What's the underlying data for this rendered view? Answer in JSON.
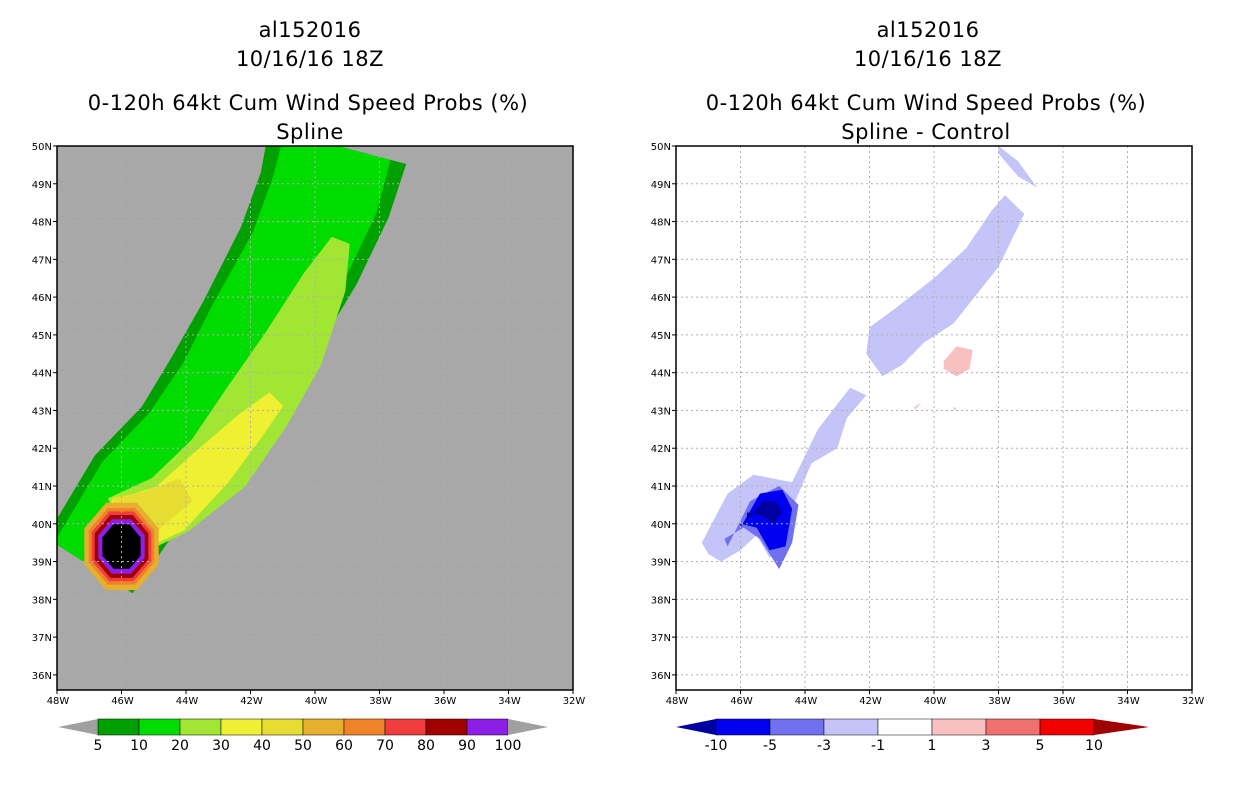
{
  "left_panel": {
    "storm_id": "al152016",
    "datetime": "10/16/16 18Z",
    "product": "0-120h 64kt Cum Wind Speed Probs (%)",
    "subtitle": "Spline"
  },
  "right_panel": {
    "storm_id": "al152016",
    "datetime": "10/16/16 18Z",
    "product": "0-120h 64kt Cum Wind Speed Probs (%)",
    "subtitle": "Spline - Control"
  },
  "colors": {
    "ocean_gray": "#a8a8a8",
    "grid": "#b0b0b0",
    "left_shading": [
      "#00a000",
      "#00dc00",
      "#a0e632",
      "#f0f032",
      "#e6dc32",
      "#e6af2d",
      "#f08228",
      "#f03c3c",
      "#a00000",
      "#8c1ee6"
    ],
    "left_end_arrows": "#a0a0a0",
    "right_shading": [
      "#0000a0",
      "#0000f0",
      "#7070f0",
      "#c4c4f8",
      "#ffffff",
      "#f8c0c0",
      "#f07070",
      "#f00000",
      "#a00000"
    ]
  },
  "chart_data": [
    {
      "type": "heatmap",
      "title": "0-120h 64kt Cum Wind Speed Probs (%)",
      "subtitle": "Spline",
      "x_ticks": [
        "48W",
        "46W",
        "44W",
        "42W",
        "40W",
        "38W",
        "36W",
        "34W",
        "32W"
      ],
      "y_ticks": [
        "36N",
        "37N",
        "38N",
        "39N",
        "40N",
        "41N",
        "42N",
        "43N",
        "44N",
        "45N",
        "46N",
        "47N",
        "48N",
        "49N",
        "50N"
      ],
      "xlim_lon": [
        -48,
        -32
      ],
      "ylim_lat": [
        35.6,
        50
      ],
      "grid": true,
      "colorbar_labels": [
        "5",
        "10",
        "20",
        "30",
        "40",
        "50",
        "60",
        "70",
        "80",
        "90",
        "100"
      ],
      "levels": [
        5,
        10,
        20,
        30,
        40,
        50,
        60,
        70,
        80,
        90,
        100
      ],
      "band_points": [
        {
          "level": 5,
          "lon": [
            -47.0,
            -45.5,
            -44.0,
            -42.8,
            -41.8,
            -40.5,
            -39.7,
            -39.3
          ],
          "lat": [
            38.9,
            40.9,
            42.1,
            43.6,
            45.1,
            47.1,
            48.7,
            50.0
          ],
          "half_width_deg": [
            1.6,
            1.7,
            1.8,
            1.9,
            1.9,
            2.0,
            2.1,
            2.2
          ]
        },
        {
          "level": 10,
          "lon": [
            -47.0,
            -45.5,
            -44.0,
            -42.8,
            -41.8,
            -40.5,
            -39.7,
            -39.3
          ],
          "lat": [
            38.9,
            40.9,
            42.1,
            43.6,
            45.1,
            47.1,
            48.7,
            50.0
          ],
          "half_width_deg": [
            1.3,
            1.4,
            1.5,
            1.5,
            1.6,
            1.6,
            1.7,
            1.7
          ]
        },
        {
          "level": 20,
          "lon": [
            -46.0,
            -44.5,
            -43.0,
            -41.8,
            -40.7,
            -39.7,
            -39.2
          ],
          "lat": [
            39.9,
            40.5,
            41.6,
            43.1,
            44.6,
            46.4,
            47.5
          ],
          "half_width_deg": [
            1.0,
            1.0,
            1.1,
            1.1,
            1.0,
            0.7,
            0.3
          ]
        },
        {
          "level": 30,
          "lon": [
            -46.0,
            -44.5,
            -43.2,
            -42.0,
            -41.2
          ],
          "lat": [
            39.9,
            40.4,
            41.5,
            42.6,
            43.3
          ],
          "half_width_deg": [
            0.9,
            0.8,
            0.7,
            0.5,
            0.3
          ]
        },
        {
          "level": 40,
          "lon": [
            -45.9,
            -45.0,
            -44.0
          ],
          "lat": [
            40.0,
            40.4,
            40.9
          ],
          "half_width_deg": [
            0.9,
            0.6,
            0.4
          ]
        }
      ],
      "center_blob": {
        "lon": -46.0,
        "lat": 39.4,
        "levels": [
          50,
          60,
          70,
          80,
          90,
          100
        ]
      }
    },
    {
      "type": "heatmap",
      "title": "0-120h 64kt Cum Wind Speed Probs (%)",
      "subtitle": "Spline - Control",
      "x_ticks": [
        "48W",
        "46W",
        "44W",
        "42W",
        "40W",
        "38W",
        "36W",
        "34W",
        "32W"
      ],
      "y_ticks": [
        "36N",
        "37N",
        "38N",
        "39N",
        "40N",
        "41N",
        "42N",
        "43N",
        "44N",
        "45N",
        "46N",
        "47N",
        "48N",
        "49N",
        "50N"
      ],
      "xlim_lon": [
        -48,
        -32
      ],
      "ylim_lat": [
        35.6,
        50
      ],
      "grid": true,
      "colorbar_labels": [
        "-10",
        "-5",
        "-3",
        "-1",
        "1",
        "3",
        "5",
        "10"
      ],
      "levels": [
        -10,
        -5,
        -3,
        -1,
        1,
        3,
        5,
        10
      ],
      "negative_regions": [
        {
          "level": -1,
          "lon": [
            -47.2,
            -46.4,
            -45.6,
            -44.4,
            -43.6,
            -42.6,
            -42.1,
            -42.7,
            -43.0,
            -43.8,
            -44.3,
            -44.6,
            -45.1,
            -45.5,
            -46.0,
            -46.6,
            -47.0
          ],
          "lat": [
            39.5,
            40.8,
            41.3,
            41.1,
            42.5,
            43.6,
            43.4,
            42.8,
            42.0,
            41.6,
            40.6,
            39.6,
            39.1,
            39.7,
            39.3,
            39.0,
            39.2
          ]
        },
        {
          "level": -1,
          "lon": [
            -42.0,
            -41.2,
            -40.0,
            -39.0,
            -38.2,
            -37.8,
            -37.2,
            -38.0,
            -39.4,
            -40.3,
            -41.0,
            -41.6,
            -42.1
          ],
          "lat": [
            45.2,
            45.7,
            46.5,
            47.3,
            48.3,
            48.7,
            48.2,
            46.8,
            45.3,
            44.8,
            44.2,
            43.9,
            44.5
          ]
        },
        {
          "level": -1,
          "lon": [
            -38.0,
            -37.4,
            -36.8,
            -37.4,
            -38.0
          ],
          "lat": [
            50.0,
            49.6,
            48.9,
            49.2,
            49.8
          ]
        },
        {
          "level": -3,
          "lon": [
            -46.4,
            -45.7,
            -44.8,
            -44.2,
            -44.4,
            -44.8,
            -45.4,
            -45.9,
            -46.5
          ],
          "lat": [
            39.4,
            40.6,
            41.0,
            40.5,
            39.5,
            38.8,
            39.6,
            39.9,
            39.6
          ]
        },
        {
          "level": -5,
          "lon": [
            -46.0,
            -45.4,
            -44.7,
            -44.4,
            -44.6,
            -45.1,
            -45.5,
            -46.0
          ],
          "lat": [
            39.9,
            40.8,
            40.9,
            40.4,
            39.4,
            39.3,
            39.9,
            40.0
          ]
        },
        {
          "level": -10,
          "lon": [
            -45.8,
            -45.3,
            -44.9,
            -44.7,
            -45.0,
            -45.3,
            -45.8
          ],
          "lat": [
            40.1,
            40.6,
            40.6,
            40.3,
            40.0,
            40.2,
            40.3
          ]
        }
      ],
      "positive_regions": [
        {
          "level": 1,
          "lon": [
            -39.7,
            -39.3,
            -38.8,
            -38.9,
            -39.3,
            -39.7
          ],
          "lat": [
            44.3,
            44.7,
            44.6,
            44.1,
            43.9,
            44.1
          ]
        },
        {
          "level": 1,
          "lon": [
            -40.6,
            -40.4,
            -40.6
          ],
          "lat": [
            43.1,
            43.2,
            43.0
          ]
        },
        {
          "level": 1,
          "lon": [
            -39.4,
            -39.3,
            -39.4
          ],
          "lat": [
            43.1,
            43.05,
            43.0
          ]
        }
      ]
    }
  ]
}
